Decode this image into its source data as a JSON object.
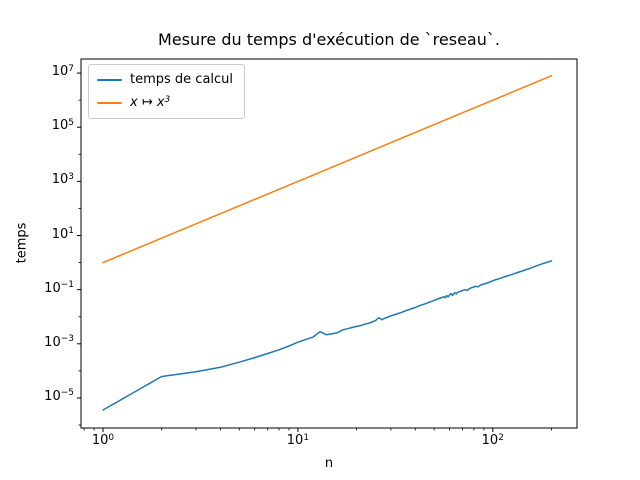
{
  "chart_data": {
    "type": "line",
    "title": "Mesure du temps d'exécution de `reseau`.",
    "xlabel": "n",
    "ylabel": "temps",
    "xscale": "log",
    "yscale": "log",
    "grid": false,
    "xlim_log10": [
      -0.113,
      2.432
    ],
    "ylim_log10": [
      -6.11,
      7.52
    ],
    "x_major_ticks": [
      {
        "value": 1,
        "label": "10^0"
      },
      {
        "value": 10,
        "label": "10^1"
      },
      {
        "value": 100,
        "label": "10^2"
      }
    ],
    "x_minor_ticks": [
      0.8,
      0.9,
      2,
      3,
      4,
      5,
      6,
      7,
      8,
      9,
      20,
      30,
      40,
      50,
      60,
      70,
      80,
      90,
      200
    ],
    "y_major_ticks": [
      {
        "value": 10000000.0,
        "label": "10^7"
      },
      {
        "value": 100000.0,
        "label": "10^5"
      },
      {
        "value": 1000.0,
        "label": "10^3"
      },
      {
        "value": 10,
        "label": "10^1"
      },
      {
        "value": 0.1,
        "label": "10^−1"
      },
      {
        "value": 0.001,
        "label": "10^−3"
      },
      {
        "value": 1e-05,
        "label": "10^−5"
      }
    ],
    "y_minor_ticks": [
      1000000.0,
      10000.0,
      100,
      1,
      0.01,
      0.0001,
      1e-06
    ],
    "legend": {
      "position": "upper left",
      "entries": [
        {
          "label": "temps de calcul",
          "color": "#1f77b4",
          "italic": false
        },
        {
          "label": "x ↦ x^3",
          "color": "#ff7f0e",
          "italic": true
        }
      ]
    },
    "series": [
      {
        "name": "temps de calcul",
        "color": "#1f77b4",
        "points": [
          [
            1,
            3.6e-06
          ],
          [
            2,
            6.2e-05
          ],
          [
            3,
            9.3e-05
          ],
          [
            4,
            0.000135
          ],
          [
            5,
            0.00021
          ],
          [
            6,
            0.00031
          ],
          [
            7,
            0.00044
          ],
          [
            8,
            0.0006
          ],
          [
            9,
            0.00083
          ],
          [
            10,
            0.00115
          ],
          [
            11,
            0.00145
          ],
          [
            12,
            0.0018
          ],
          [
            13,
            0.0028
          ],
          [
            14,
            0.00215
          ],
          [
            15,
            0.00235
          ],
          [
            16,
            0.0026
          ],
          [
            17,
            0.0033
          ],
          [
            18,
            0.0036
          ],
          [
            19,
            0.004
          ],
          [
            20,
            0.0044
          ],
          [
            21,
            0.0047
          ],
          [
            22,
            0.0053
          ],
          [
            23,
            0.0057
          ],
          [
            24,
            0.0064
          ],
          [
            25,
            0.0072
          ],
          [
            26,
            0.0092
          ],
          [
            27,
            0.0078
          ],
          [
            28,
            0.009
          ],
          [
            29,
            0.0098
          ],
          [
            30,
            0.0108
          ],
          [
            32,
            0.0125
          ],
          [
            34,
            0.0145
          ],
          [
            36,
            0.017
          ],
          [
            38,
            0.0195
          ],
          [
            40,
            0.022
          ],
          [
            42,
            0.0255
          ],
          [
            44,
            0.0285
          ],
          [
            46,
            0.032
          ],
          [
            48,
            0.036
          ],
          [
            50,
            0.04
          ],
          [
            52,
            0.045
          ],
          [
            54,
            0.049
          ],
          [
            56,
            0.055
          ],
          [
            57,
            0.05
          ],
          [
            58,
            0.061
          ],
          [
            59,
            0.054
          ],
          [
            60,
            0.064
          ],
          [
            61,
            0.072
          ],
          [
            62,
            0.062
          ],
          [
            63,
            0.07
          ],
          [
            64,
            0.078
          ],
          [
            65,
            0.07
          ],
          [
            66,
            0.08
          ],
          [
            68,
            0.086
          ],
          [
            70,
            0.093
          ],
          [
            72,
            0.1
          ],
          [
            74,
            0.094
          ],
          [
            76,
            0.11
          ],
          [
            78,
            0.118
          ],
          [
            80,
            0.126
          ],
          [
            82,
            0.132
          ],
          [
            84,
            0.128
          ],
          [
            86,
            0.145
          ],
          [
            88,
            0.155
          ],
          [
            90,
            0.162
          ],
          [
            92,
            0.17
          ],
          [
            94,
            0.178
          ],
          [
            96,
            0.19
          ],
          [
            98,
            0.2
          ],
          [
            100,
            0.215
          ],
          [
            104,
            0.235
          ],
          [
            108,
            0.255
          ],
          [
            112,
            0.28
          ],
          [
            116,
            0.305
          ],
          [
            120,
            0.33
          ],
          [
            124,
            0.355
          ],
          [
            128,
            0.385
          ],
          [
            132,
            0.415
          ],
          [
            136,
            0.445
          ],
          [
            140,
            0.475
          ],
          [
            144,
            0.51
          ],
          [
            148,
            0.55
          ],
          [
            152,
            0.58
          ],
          [
            156,
            0.62
          ],
          [
            160,
            0.67
          ],
          [
            164,
            0.71
          ],
          [
            168,
            0.76
          ],
          [
            172,
            0.81
          ],
          [
            176,
            0.86
          ],
          [
            180,
            0.91
          ],
          [
            184,
            0.96
          ],
          [
            188,
            1.0
          ],
          [
            192,
            1.05
          ],
          [
            196,
            1.1
          ],
          [
            200,
            1.15
          ]
        ]
      },
      {
        "name": "x ↦ x^3",
        "color": "#ff7f0e",
        "points": [
          [
            1,
            1
          ],
          [
            2,
            8
          ],
          [
            5,
            125
          ],
          [
            10,
            1000
          ],
          [
            20,
            8000
          ],
          [
            50,
            125000
          ],
          [
            100,
            1000000
          ],
          [
            200,
            8000000
          ]
        ]
      }
    ]
  }
}
